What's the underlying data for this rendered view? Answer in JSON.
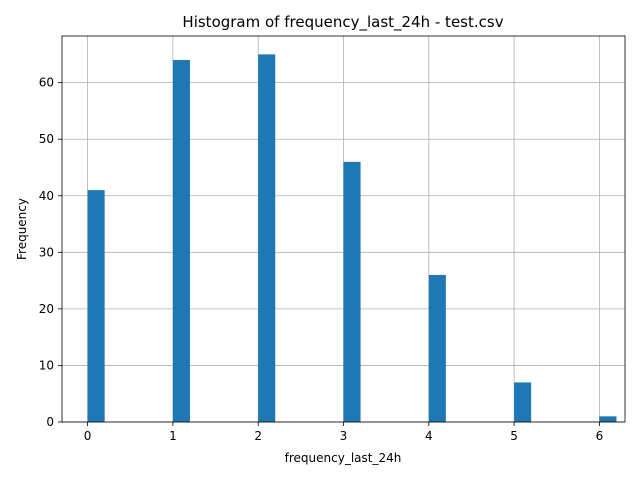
{
  "chart_data": {
    "type": "bar",
    "title": "Histogram of frequency_last_24h - test.csv",
    "xlabel": "frequency_last_24h",
    "ylabel": "Frequency",
    "bins": [
      {
        "x": 0,
        "value": 41
      },
      {
        "x": 1,
        "value": 64
      },
      {
        "x": 2,
        "value": 65
      },
      {
        "x": 3,
        "value": 46
      },
      {
        "x": 4,
        "value": 26
      },
      {
        "x": 5,
        "value": 7
      },
      {
        "x": 6,
        "value": 1
      }
    ],
    "bin_width": 0.2,
    "xlim": [
      -0.3,
      6.3
    ],
    "ylim": [
      0,
      68.25
    ],
    "xticks": [
      0,
      1,
      2,
      3,
      4,
      5,
      6
    ],
    "yticks": [
      0,
      10,
      20,
      30,
      40,
      50,
      60
    ],
    "grid": true,
    "bar_color": "#1f77b4"
  }
}
